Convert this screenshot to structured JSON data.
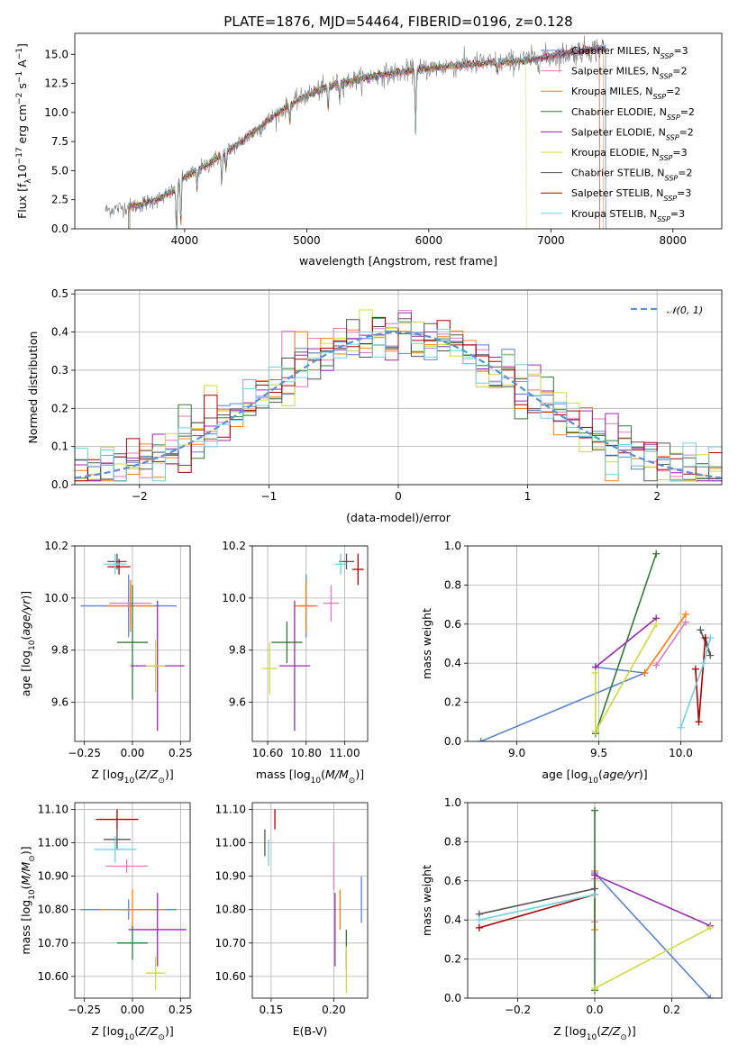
{
  "colors": {
    "chabrier_miles": "#5b84d4",
    "salpeter_miles": "#e377c2",
    "kroupa_miles": "#ff7f0e",
    "chabrier_elodie": "#2e7d32",
    "salpeter_elodie": "#9c27b0",
    "kroupa_elodie": "#cddc39",
    "chabrier_stelib": "#555555",
    "salpeter_stelib": "#b00000",
    "kroupa_stelib": "#6fd3e0",
    "data": "#808080",
    "normal": "#5b8fd6"
  },
  "chart_data": [
    {
      "id": "spectrum",
      "type": "line",
      "title": "PLATE=1876, MJD=54464, FIBERID=0196, z=0.128",
      "xlabel": "wavelength [Angstrom, rest frame]",
      "ylabel": "Flux [f_λ 10^-17 erg cm^-2 s^-1 A^-1]",
      "xlim": [
        3100,
        8400
      ],
      "ylim": [
        0,
        16.8
      ],
      "xticks": [
        4000,
        5000,
        6000,
        7000,
        8000
      ],
      "yticks": [
        0.0,
        2.5,
        5.0,
        7.5,
        10.0,
        12.5,
        15.0
      ],
      "legend_position": "top-right",
      "legend": [
        {
          "label": "Chabrier MILES, N_SSP=3",
          "color_key": "chabrier_miles"
        },
        {
          "label": "Salpeter MILES, N_SSP=2",
          "color_key": "salpeter_miles"
        },
        {
          "label": "Kroupa MILES, N_SSP=2",
          "color_key": "kroupa_miles"
        },
        {
          "label": "Chabrier ELODIE, N_SSP=2",
          "color_key": "chabrier_elodie"
        },
        {
          "label": "Salpeter ELODIE, N_SSP=2",
          "color_key": "salpeter_elodie"
        },
        {
          "label": "Kroupa ELODIE, N_SSP=3",
          "color_key": "kroupa_elodie"
        },
        {
          "label": "Chabrier STELIB, N_SSP=2",
          "color_key": "chabrier_stelib"
        },
        {
          "label": "Salpeter STELIB, N_SSP=3",
          "color_key": "salpeter_stelib"
        },
        {
          "label": "Kroupa STELIB, N_SSP=3",
          "color_key": "kroupa_stelib"
        }
      ],
      "continuum": {
        "x": [
          3350,
          3600,
          3800,
          4000,
          4200,
          4400,
          4600,
          4800,
          5000,
          5200,
          5400,
          5600,
          5800,
          6000,
          6200,
          6400,
          6600,
          6800,
          7000,
          7200,
          7400
        ],
        "y": [
          2.2,
          2.6,
          3.2,
          4.4,
          5.6,
          7.0,
          8.6,
          10.2,
          11.5,
          12.3,
          12.8,
          13.2,
          13.5,
          13.8,
          14.0,
          14.2,
          14.3,
          14.5,
          14.8,
          15.2,
          15.5
        ]
      },
      "model_cutoffs": {
        "kroupa_elodie": [
          3550,
          6800
        ],
        "salpeter_stelib": [
          3550,
          7400
        ],
        "kroupa_miles": [
          3540,
          7430
        ]
      }
    },
    {
      "id": "residuals",
      "type": "histogram",
      "xlabel": "(data-model)/error",
      "ylabel": "Normed distribution",
      "xlim": [
        -2.5,
        2.5
      ],
      "ylim": [
        0,
        0.51
      ],
      "xticks": [
        -2,
        -1,
        0,
        1,
        2
      ],
      "yticks": [
        0.0,
        0.1,
        0.2,
        0.3,
        0.4,
        0.5
      ],
      "grid": true,
      "legend_position": "top-right",
      "legend_label": "𝒩(0, 1)",
      "bin_width": 0.1,
      "bin_start": -2.5,
      "reference_curve": "normal(0,1)",
      "series_color_keys": [
        "chabrier_miles",
        "salpeter_miles",
        "kroupa_miles",
        "chabrier_elodie",
        "salpeter_elodie",
        "kroupa_elodie",
        "chabrier_stelib",
        "salpeter_stelib",
        "kroupa_stelib"
      ]
    },
    {
      "id": "age_vs_Z",
      "type": "errorbar",
      "xlabel": "Z [log10(Z/Z☉)]",
      "ylabel": "age [log10(age/yr)]",
      "xlim": [
        -0.3,
        0.3
      ],
      "ylim": [
        9.45,
        10.2
      ],
      "xticks": [
        -0.25,
        0.0,
        0.25
      ],
      "yticks": [
        9.6,
        9.8,
        10.0,
        10.2
      ],
      "grid": true,
      "points": [
        {
          "key": "chabrier_miles",
          "x": -0.02,
          "xerr": 0.25,
          "y": 9.97,
          "yerr": 0.12
        },
        {
          "key": "salpeter_miles",
          "x": -0.01,
          "xerr": 0.11,
          "y": 9.98,
          "yerr": 0.07
        },
        {
          "key": "kroupa_miles",
          "x": -0.01,
          "xerr": 0.12,
          "y": 9.97,
          "yerr": 0.1
        },
        {
          "key": "chabrier_elodie",
          "x": 0.0,
          "xerr": 0.08,
          "y": 9.83,
          "yerr": 0.22
        },
        {
          "key": "salpeter_elodie",
          "x": 0.13,
          "xerr": 0.14,
          "y": 9.74,
          "yerr": 0.25
        },
        {
          "key": "kroupa_elodie",
          "x": 0.12,
          "xerr": 0.05,
          "y": 9.74,
          "yerr": 0.1
        },
        {
          "key": "chabrier_stelib",
          "x": -0.08,
          "xerr": 0.05,
          "y": 10.14,
          "yerr": 0.03
        },
        {
          "key": "salpeter_stelib",
          "x": -0.07,
          "xerr": 0.06,
          "y": 10.12,
          "yerr": 0.03
        },
        {
          "key": "kroupa_stelib",
          "x": -0.09,
          "xerr": 0.06,
          "y": 10.13,
          "yerr": 0.04
        }
      ]
    },
    {
      "id": "age_vs_mass",
      "type": "errorbar",
      "xlabel": "mass [log10(M/M☉)]",
      "ylabel": "",
      "xlim": [
        10.52,
        11.12
      ],
      "ylim": [
        9.45,
        10.2
      ],
      "xticks": [
        10.6,
        10.8,
        11.0
      ],
      "yticks": [
        9.6,
        9.8,
        10.0,
        10.2
      ],
      "grid": true,
      "points": [
        {
          "key": "chabrier_miles",
          "x": 10.8,
          "xerr": 0.04,
          "y": 9.97,
          "yerr": 0.12
        },
        {
          "key": "salpeter_miles",
          "x": 10.93,
          "xerr": 0.04,
          "y": 9.98,
          "yerr": 0.07
        },
        {
          "key": "kroupa_miles",
          "x": 10.8,
          "xerr": 0.06,
          "y": 9.97,
          "yerr": 0.1
        },
        {
          "key": "chabrier_elodie",
          "x": 10.7,
          "xerr": 0.08,
          "y": 9.83,
          "yerr": 0.08
        },
        {
          "key": "salpeter_elodie",
          "x": 10.74,
          "xerr": 0.08,
          "y": 9.74,
          "yerr": 0.25
        },
        {
          "key": "kroupa_elodie",
          "x": 10.61,
          "xerr": 0.04,
          "y": 9.73,
          "yerr": 0.1
        },
        {
          "key": "chabrier_stelib",
          "x": 11.01,
          "xerr": 0.04,
          "y": 10.14,
          "yerr": 0.03
        },
        {
          "key": "salpeter_stelib",
          "x": 11.07,
          "xerr": 0.03,
          "y": 10.11,
          "yerr": 0.06
        },
        {
          "key": "kroupa_stelib",
          "x": 10.98,
          "xerr": 0.03,
          "y": 10.13,
          "yerr": 0.04
        }
      ]
    },
    {
      "id": "massweight_vs_age",
      "type": "line",
      "xlabel": "age [log10(age/yr)]",
      "ylabel": "mass weight",
      "xlim": [
        8.7,
        10.25
      ],
      "ylim": [
        0,
        1.0
      ],
      "xticks": [
        9.0,
        9.5,
        10.0
      ],
      "yticks": [
        0.0,
        0.2,
        0.4,
        0.6,
        0.8,
        1.0
      ],
      "grid": true,
      "series": [
        {
          "key": "chabrier_miles",
          "x": [
            8.78,
            9.78,
            9.48
          ],
          "y": [
            0.0,
            0.35,
            0.38
          ]
        },
        {
          "key": "salpeter_miles",
          "x": [
            9.85,
            10.03
          ],
          "y": [
            0.39,
            0.61
          ]
        },
        {
          "key": "kroupa_miles",
          "x": [
            9.78,
            10.03
          ],
          "y": [
            0.35,
            0.65
          ]
        },
        {
          "key": "chabrier_elodie",
          "x": [
            9.48,
            9.85
          ],
          "y": [
            0.04,
            0.96
          ]
        },
        {
          "key": "salpeter_elodie",
          "x": [
            9.48,
            9.85
          ],
          "y": [
            0.38,
            0.63
          ]
        },
        {
          "key": "kroupa_elodie",
          "x": [
            9.48,
            9.48,
            9.85
          ],
          "y": [
            0.35,
            0.05,
            0.6
          ]
        },
        {
          "key": "chabrier_stelib",
          "x": [
            10.12,
            10.18,
            10.15
          ],
          "y": [
            0.57,
            0.44,
            0.53
          ]
        },
        {
          "key": "salpeter_stelib",
          "x": [
            10.09,
            10.11,
            10.15
          ],
          "y": [
            0.37,
            0.1,
            0.53
          ]
        },
        {
          "key": "kroupa_stelib",
          "x": [
            10.0,
            10.14,
            10.18
          ],
          "y": [
            0.07,
            0.4,
            0.53
          ]
        }
      ]
    },
    {
      "id": "mass_vs_Z",
      "type": "errorbar",
      "xlabel": "Z [log10(Z/Z☉)]",
      "ylabel": "mass [log10(M/M☉)]",
      "xlim": [
        -0.3,
        0.3
      ],
      "ylim": [
        10.535,
        11.12
      ],
      "xticks": [
        -0.25,
        0.0,
        0.25
      ],
      "yticks": [
        10.6,
        10.7,
        10.8,
        10.9,
        11.0,
        11.1
      ],
      "grid": true,
      "points": [
        {
          "key": "chabrier_miles",
          "x": -0.02,
          "xerr": 0.25,
          "y": 10.8,
          "yerr": 0.03
        },
        {
          "key": "salpeter_miles",
          "x": -0.03,
          "xerr": 0.11,
          "y": 10.93,
          "yerr": 0.02
        },
        {
          "key": "kroupa_miles",
          "x": 0.0,
          "xerr": 0.17,
          "y": 10.8,
          "yerr": 0.06
        },
        {
          "key": "chabrier_elodie",
          "x": 0.0,
          "xerr": 0.08,
          "y": 10.7,
          "yerr": 0.05
        },
        {
          "key": "salpeter_elodie",
          "x": 0.13,
          "xerr": 0.15,
          "y": 10.74,
          "yerr": 0.11
        },
        {
          "key": "kroupa_elodie",
          "x": 0.12,
          "xerr": 0.05,
          "y": 10.61,
          "yerr": 0.05
        },
        {
          "key": "chabrier_stelib",
          "x": -0.08,
          "xerr": 0.07,
          "y": 11.01,
          "yerr": 0.03
        },
        {
          "key": "salpeter_stelib",
          "x": -0.08,
          "xerr": 0.11,
          "y": 11.07,
          "yerr": 0.03
        },
        {
          "key": "kroupa_stelib",
          "x": -0.09,
          "xerr": 0.11,
          "y": 10.98,
          "yerr": 0.04
        }
      ]
    },
    {
      "id": "mass_vs_ebv",
      "type": "errorbar",
      "xlabel": "E(B-V)",
      "ylabel": "",
      "xlim": [
        0.135,
        0.227
      ],
      "ylim": [
        10.535,
        11.12
      ],
      "xticks": [
        0.15,
        0.2
      ],
      "yticks": [
        10.6,
        10.7,
        10.8,
        10.9,
        11.0,
        11.1
      ],
      "grid": true,
      "points": [
        {
          "key": "chabrier_miles",
          "x": 0.222,
          "xerr": 0.0,
          "y": 10.83,
          "yerr": 0.07
        },
        {
          "key": "salpeter_miles",
          "x": 0.2,
          "xerr": 0.0,
          "y": 10.93,
          "yerr": 0.07
        },
        {
          "key": "kroupa_miles",
          "x": 0.205,
          "xerr": 0.0,
          "y": 10.8,
          "yerr": 0.06
        },
        {
          "key": "chabrier_elodie",
          "x": 0.21,
          "xerr": 0.0,
          "y": 10.68,
          "yerr": 0.06
        },
        {
          "key": "salpeter_elodie",
          "x": 0.201,
          "xerr": 0.0,
          "y": 10.74,
          "yerr": 0.11
        },
        {
          "key": "kroupa_elodie",
          "x": 0.21,
          "xerr": 0.0,
          "y": 10.62,
          "yerr": 0.07
        },
        {
          "key": "chabrier_stelib",
          "x": 0.145,
          "xerr": 0.0,
          "y": 11.0,
          "yerr": 0.04
        },
        {
          "key": "salpeter_stelib",
          "x": 0.153,
          "xerr": 0.0,
          "y": 11.07,
          "yerr": 0.03
        },
        {
          "key": "kroupa_stelib",
          "x": 0.148,
          "xerr": 0.0,
          "y": 10.97,
          "yerr": 0.04
        }
      ]
    },
    {
      "id": "massweight_vs_Z",
      "type": "line",
      "xlabel": "Z [log10(Z/Z☉)]",
      "ylabel": "mass weight",
      "xlim": [
        -0.33,
        0.33
      ],
      "ylim": [
        0,
        1.0
      ],
      "xticks": [
        -0.2,
        0.0,
        0.2
      ],
      "yticks": [
        0.0,
        0.2,
        0.4,
        0.6,
        0.8,
        1.0
      ],
      "grid": true,
      "series": [
        {
          "key": "chabrier_miles",
          "x": [
            0.0,
            0.3
          ],
          "y": [
            0.64,
            0.0
          ]
        },
        {
          "key": "salpeter_miles",
          "x": [
            0.0,
            0.0
          ],
          "y": [
            0.39,
            0.61
          ]
        },
        {
          "key": "kroupa_miles",
          "x": [
            0.0,
            0.0
          ],
          "y": [
            0.35,
            0.65
          ]
        },
        {
          "key": "chabrier_elodie",
          "x": [
            0.0,
            0.0
          ],
          "y": [
            0.04,
            0.96
          ]
        },
        {
          "key": "salpeter_elodie",
          "x": [
            0.0,
            0.3
          ],
          "y": [
            0.63,
            0.37
          ]
        },
        {
          "key": "kroupa_elodie",
          "x": [
            0.0,
            0.3
          ],
          "y": [
            0.05,
            0.36
          ]
        },
        {
          "key": "chabrier_stelib",
          "x": [
            -0.3,
            0.0
          ],
          "y": [
            0.43,
            0.56
          ]
        },
        {
          "key": "salpeter_stelib",
          "x": [
            -0.3,
            0.0
          ],
          "y": [
            0.36,
            0.53
          ]
        },
        {
          "key": "kroupa_stelib",
          "x": [
            -0.3,
            0.0
          ],
          "y": [
            0.4,
            0.53
          ]
        }
      ]
    }
  ]
}
